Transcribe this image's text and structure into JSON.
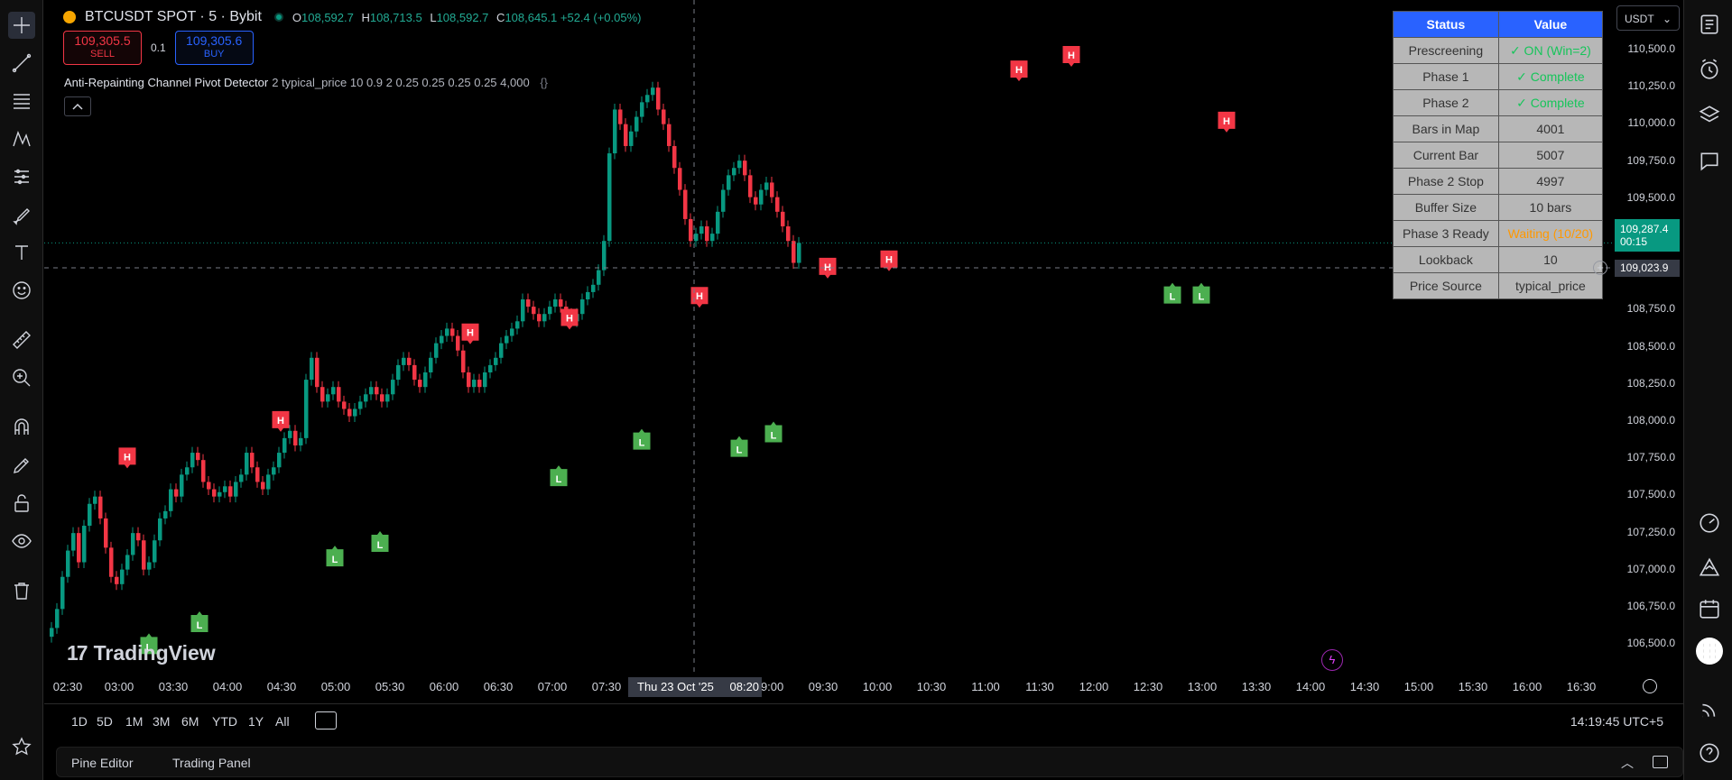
{
  "header": {
    "symbol": "BTCUSDT SPOT · 5 · Bybit",
    "ohlc": [
      {
        "k": "O",
        "v": "108,592.7"
      },
      {
        "k": "H",
        "v": "108,713.5"
      },
      {
        "k": "L",
        "v": "108,592.7"
      },
      {
        "k": "C",
        "v": "108,645.1 +52.4 (+0.05%)"
      }
    ]
  },
  "trade": {
    "sell_price": "109,305.5",
    "sell_label": "SELL",
    "qty": "0.1",
    "buy_price": "109,305.6",
    "buy_label": "BUY"
  },
  "indicator": {
    "name": "Anti-Repainting Channel Pivot Detector",
    "params": "2 typical_price 10 0.9 2 0.25 0.25 0.25 0.25 4,000",
    "collapse_icon": "chevron-up-icon"
  },
  "status_table": {
    "headers": [
      "Status",
      "Value"
    ],
    "rows": [
      {
        "label": "Prescreening",
        "value": "✓ ON (Win=2)",
        "state": "ok"
      },
      {
        "label": "Phase 1",
        "value": "✓ Complete",
        "state": "ok"
      },
      {
        "label": "Phase 2",
        "value": "✓ Complete",
        "state": "ok"
      },
      {
        "label": "Bars in Map",
        "value": "4001",
        "state": ""
      },
      {
        "label": "Current Bar",
        "value": "5007",
        "state": ""
      },
      {
        "label": "Phase 2 Stop",
        "value": "4997",
        "state": ""
      },
      {
        "label": "Buffer Size",
        "value": "10 bars",
        "state": ""
      },
      {
        "label": "Phase 3 Ready",
        "value": "Waiting (10/20)",
        "state": "wait"
      },
      {
        "label": "Lookback",
        "value": "10",
        "state": ""
      },
      {
        "label": "Price Source",
        "value": "typical_price",
        "state": ""
      }
    ]
  },
  "price_axis": {
    "currency": "USDT",
    "labels": [
      "110,500.0",
      "110,250.0",
      "110,000.0",
      "109,750.0",
      "109,500.0",
      "109,250.0",
      "109,000.0",
      "108,750.0",
      "108,500.0",
      "108,250.0",
      "108,000.0",
      "107,750.0",
      "107,500.0",
      "107,250.0",
      "107,000.0",
      "106,750.0",
      "106,500.0"
    ],
    "last_price": "109,287.4",
    "countdown": "00:15",
    "crosshair_price": "109,023.9"
  },
  "time_axis": {
    "labels": [
      "02:30",
      "03:00",
      "03:30",
      "04:00",
      "04:30",
      "05:00",
      "05:30",
      "06:00",
      "06:30",
      "07:00",
      "07:30",
      "09:00",
      "09:30",
      "10:00",
      "10:30",
      "11:00",
      "11:30",
      "12:00",
      "12:30",
      "13:00",
      "13:30",
      "14:00",
      "14:30",
      "15:00",
      "15:30",
      "16:00",
      "16:30"
    ],
    "crosshair_date": "Thu 23 Oct '25",
    "crosshair_time": "08:20"
  },
  "branding": {
    "logo_text": "TradingView",
    "logo_mark": "17"
  },
  "range_bar": {
    "ranges": [
      "1D",
      "5D",
      "1M",
      "3M",
      "6M",
      "YTD",
      "1Y",
      "All"
    ],
    "clock": "14:19:45 UTC+5"
  },
  "panel_tabs": [
    "Pine Editor",
    "Trading Panel"
  ],
  "colors": {
    "up": "#089981",
    "down": "#f23645",
    "pivot_high": "#f23645",
    "pivot_low": "#4caf50",
    "accent": "#2962ff"
  },
  "pivot_labels": {
    "high": "H",
    "low": "L"
  },
  "chart_data": {
    "type": "candlestick",
    "y_range": [
      106350,
      110950
    ],
    "candles_close": [
      106650,
      106780,
      107000,
      107180,
      107300,
      107100,
      107350,
      107500,
      107550,
      107400,
      107200,
      107000,
      106950,
      107050,
      107150,
      107300,
      107250,
      107050,
      107100,
      107250,
      107400,
      107450,
      107600,
      107550,
      107700,
      107750,
      107850,
      107800,
      107650,
      107600,
      107550,
      107580,
      107620,
      107550,
      107650,
      107700,
      107850,
      107750,
      107650,
      107600,
      107700,
      107750,
      107850,
      107950,
      108000,
      107900,
      107950,
      108350,
      108500,
      108300,
      108200,
      108250,
      108300,
      108200,
      108150,
      108100,
      108150,
      108200,
      108250,
      108300,
      108250,
      108200,
      108250,
      108350,
      108450,
      108500,
      108450,
      108350,
      108300,
      108400,
      108500,
      108600,
      108650,
      108700,
      108650,
      108550,
      108400,
      108300,
      108350,
      108300,
      108400,
      108450,
      108500,
      108600,
      108650,
      108700,
      108750,
      108900,
      108850,
      108800,
      108750,
      108800,
      108850,
      108900,
      108850,
      108800,
      108750,
      108800,
      108900,
      108950,
      109000,
      109100,
      109300,
      109900,
      110200,
      110100,
      109950,
      110050,
      110150,
      110250,
      110300,
      110350,
      110200,
      110100,
      109950,
      109800,
      109650,
      109450,
      109300,
      109350,
      109400,
      109300,
      109350,
      109500,
      109650,
      109750,
      109800,
      109850,
      109750,
      109600,
      109550,
      109650,
      109700,
      109600,
      109500,
      109400,
      109300,
      109150,
      109287
    ],
    "pivot_highs": [
      107700,
      107950,
      108550,
      108650,
      108800,
      109000,
      109050,
      110350,
      110450,
      110000
    ],
    "pivot_lows": [
      106700,
      106850,
      107300,
      107400,
      107850,
      108100,
      108050,
      108150,
      109100,
      109100
    ]
  }
}
